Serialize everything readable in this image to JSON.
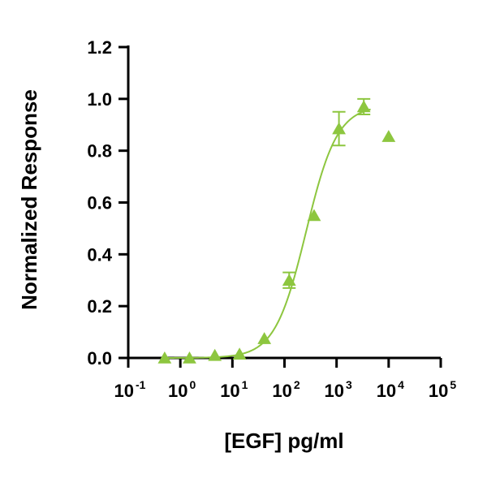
{
  "chart_data": {
    "type": "scatter",
    "xlabel": "[EGF] pg/ml",
    "ylabel": "Normalized Response",
    "xscale": "log",
    "xlim": [
      0.1,
      100000
    ],
    "ylim": [
      0,
      1.2
    ],
    "grid": false,
    "legend": "none",
    "colors": {
      "series": "#8DC63F",
      "axis": "#000000"
    },
    "x_ticks": [
      {
        "base": "10",
        "exp": "-1",
        "value": 0.1
      },
      {
        "base": "10",
        "exp": "0",
        "value": 1
      },
      {
        "base": "10",
        "exp": "1",
        "value": 10
      },
      {
        "base": "10",
        "exp": "2",
        "value": 100
      },
      {
        "base": "10",
        "exp": "3",
        "value": 1000
      },
      {
        "base": "10",
        "exp": "4",
        "value": 10000
      },
      {
        "base": "10",
        "exp": "5",
        "value": 100000
      }
    ],
    "y_ticks": [
      {
        "label": "0.0",
        "value": 0.0
      },
      {
        "label": "0.2",
        "value": 0.2
      },
      {
        "label": "0.4",
        "value": 0.4
      },
      {
        "label": "0.6",
        "value": 0.6
      },
      {
        "label": "0.8",
        "value": 0.8
      },
      {
        "label": "1.0",
        "value": 1.0
      },
      {
        "label": "1.2",
        "value": 1.2
      }
    ],
    "series": [
      {
        "marker": "triangle",
        "points": [
          {
            "x": 0.5,
            "y": 0.0,
            "err": 0
          },
          {
            "x": 1.5,
            "y": 0.0,
            "err": 0
          },
          {
            "x": 4.6,
            "y": 0.01,
            "err": 0
          },
          {
            "x": 13.7,
            "y": 0.015,
            "err": 0
          },
          {
            "x": 41,
            "y": 0.075,
            "err": 0
          },
          {
            "x": 123,
            "y": 0.3,
            "err": 0.03
          },
          {
            "x": 370,
            "y": 0.55,
            "err": 0
          },
          {
            "x": 1111,
            "y": 0.885,
            "err": 0.065
          },
          {
            "x": 3333,
            "y": 0.97,
            "err": 0.03
          },
          {
            "x": 10000,
            "y": 0.855,
            "err": 0
          }
        ]
      }
    ],
    "fit_curve": {
      "bottom": 0.0,
      "top": 0.975,
      "ec50": 260,
      "hill": 1.45
    }
  }
}
